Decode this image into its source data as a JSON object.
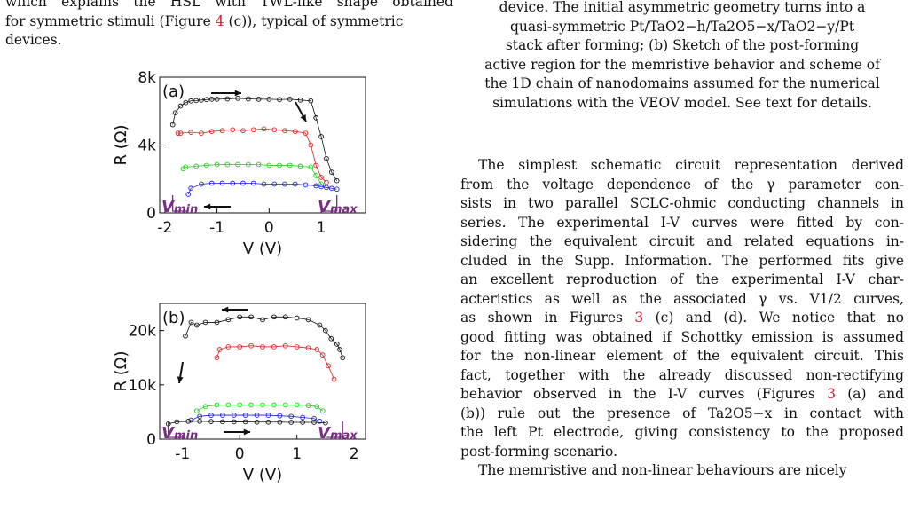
{
  "left_column": {
    "top_text": [
      "which explains the HSL with TWL-like shape obtained",
      "for symmetric stimuli (Figure ",
      "4",
      " (c)), typical of symmetric",
      "devices."
    ]
  },
  "right_column": {
    "caption_lines": [
      "device. The initial asymmetric geometry turns into a",
      "quasi-symmetric Pt/TaO2−h/Ta2O5−x/TaO2−y/Pt",
      "stack after forming; (b) Sketch of the post-forming",
      "active region for the memristive behavior and scheme of",
      "the 1D chain of nanodomains assumed for the numerical",
      "simulations with the VEOV model. See text for details."
    ],
    "body_lines": [
      "The simplest schematic circuit representation derived",
      "from the voltage dependence of the γ parameter con-",
      "sists in two parallel SCLC-ohmic conducting channels in",
      "series. The experimental I-V curves were fitted by con-",
      "sidering the equivalent circuit and related equations in-",
      "cluded in the Supp. Information. The performed fits give",
      "an excellent reproduction of the experimental I-V char-",
      "acteristics as well as the associated γ vs. V1/2 curves,",
      "as shown in Figures ",
      "3",
      " (c) and (d). We notice that no",
      "good fitting was obtained if Schottky emission is assumed",
      "for the non-linear element of the equivalent circuit. This",
      "fact, together with the already discussed non-rectifying",
      "behavior observed in the I-V curves (Figures ",
      "3",
      " (a) and",
      "(b)) rule out the presence of Ta2O5−x in contact with",
      "the left Pt electrode, giving consistency to the proposed",
      "post-forming scenario.",
      "The memristive and non-linear behaviours are nicely"
    ]
  },
  "colors": {
    "black": "#111111",
    "red": "#e02020",
    "green": "#22c81e",
    "blue": "#1e1ee6",
    "purple": "#7a2c86",
    "ref": "#e0142c"
  },
  "chart_data": [
    {
      "type": "scatter",
      "panel_label": "(a)",
      "xlabel": "V (V)",
      "ylabel": "R (Ω)",
      "xlim": [
        -2.1,
        1.85
      ],
      "ylim": [
        0,
        8000
      ],
      "xticks": [
        "-2",
        "-1",
        "0",
        "1"
      ],
      "yticks": [
        "0",
        "4k",
        "8k"
      ],
      "annotations": [
        "V_min",
        "V_max"
      ],
      "series": [
        {
          "color": "black",
          "x": [
            -1.85,
            -1.8,
            -1.7,
            -1.6,
            -1.5,
            -1.4,
            -1.3,
            -1.2,
            -1.1,
            -1.0,
            -0.8,
            -0.6,
            -0.4,
            -0.2,
            0,
            0.2,
            0.4,
            0.6,
            0.8,
            0.9,
            1.0,
            1.1,
            1.2,
            1.3
          ],
          "y": [
            5200,
            5900,
            6300,
            6500,
            6600,
            6620,
            6650,
            6680,
            6700,
            6700,
            6720,
            6750,
            6720,
            6700,
            6700,
            6680,
            6700,
            6650,
            6600,
            5600,
            4500,
            3200,
            2400,
            1900
          ]
        },
        {
          "color": "red",
          "x": [
            -1.75,
            -1.7,
            -1.5,
            -1.3,
            -1.1,
            -0.9,
            -0.7,
            -0.5,
            -0.3,
            -0.1,
            0.1,
            0.3,
            0.5,
            0.7,
            0.8,
            0.9,
            1.0,
            1.1
          ],
          "y": [
            4700,
            4700,
            4750,
            4700,
            4800,
            4850,
            4900,
            4850,
            4900,
            4950,
            4900,
            4850,
            4800,
            4700,
            4000,
            2800,
            2100,
            1800
          ]
        },
        {
          "color": "green",
          "x": [
            -1.65,
            -1.6,
            -1.4,
            -1.2,
            -1.0,
            -0.8,
            -0.6,
            -0.4,
            -0.2,
            0,
            0.2,
            0.4,
            0.6,
            0.8,
            0.9,
            1.0
          ],
          "y": [
            2600,
            2700,
            2750,
            2800,
            2850,
            2850,
            2850,
            2850,
            2850,
            2800,
            2800,
            2800,
            2750,
            2700,
            2200,
            1700
          ]
        },
        {
          "color": "blue",
          "x": [
            -1.55,
            -1.5,
            -1.3,
            -1.1,
            -0.9,
            -0.7,
            -0.5,
            -0.3,
            -0.1,
            0.1,
            0.3,
            0.5,
            0.7,
            0.9,
            1.0,
            1.1,
            1.2,
            1.3
          ],
          "y": [
            1100,
            1450,
            1700,
            1750,
            1750,
            1750,
            1750,
            1750,
            1700,
            1700,
            1700,
            1700,
            1650,
            1600,
            1550,
            1500,
            1450,
            1400
          ]
        }
      ]
    },
    {
      "type": "scatter",
      "panel_label": "(b)",
      "xlabel": "V (V)",
      "ylabel": "R (Ω)",
      "xlim": [
        -1.4,
        2.2
      ],
      "ylim": [
        0,
        25000
      ],
      "xticks": [
        "-1",
        "0",
        "1",
        "2"
      ],
      "yticks": [
        "0",
        "10k",
        "20k"
      ],
      "annotations": [
        "V_min",
        "V_max"
      ],
      "series": [
        {
          "color": "black",
          "x": [
            -0.95,
            -0.85,
            -0.75,
            -0.6,
            -0.4,
            -0.2,
            0,
            0.2,
            0.4,
            0.6,
            0.8,
            1.0,
            1.2,
            1.4,
            1.5,
            1.6,
            1.7,
            1.75,
            1.8
          ],
          "y": [
            19000,
            21500,
            21000,
            21500,
            21500,
            22000,
            22500,
            22500,
            22000,
            22500,
            22500,
            22300,
            22000,
            21000,
            20000,
            18500,
            17500,
            16500,
            15000
          ]
        },
        {
          "color": "red",
          "x": [
            -0.4,
            -0.35,
            -0.2,
            0,
            0.2,
            0.4,
            0.6,
            0.8,
            1.0,
            1.2,
            1.35,
            1.45,
            1.55,
            1.65
          ],
          "y": [
            15000,
            16500,
            17000,
            17000,
            17200,
            17000,
            17000,
            17200,
            17000,
            16800,
            16500,
            15500,
            13500,
            11000
          ]
        },
        {
          "color": "green",
          "x": [
            -0.75,
            -0.6,
            -0.4,
            -0.2,
            0,
            0.2,
            0.4,
            0.6,
            0.8,
            1.0,
            1.2,
            1.35,
            1.45
          ],
          "y": [
            5200,
            6000,
            6300,
            6300,
            6300,
            6300,
            6300,
            6300,
            6300,
            6300,
            6200,
            6000,
            5200
          ]
        },
        {
          "color": "blue",
          "x": [
            -0.85,
            -0.7,
            -0.5,
            -0.3,
            -0.1,
            0.1,
            0.3,
            0.5,
            0.7,
            0.9,
            1.1,
            1.3,
            1.4
          ],
          "y": [
            3500,
            4200,
            4400,
            4400,
            4400,
            4400,
            4400,
            4400,
            4300,
            4200,
            4000,
            3800,
            3300
          ]
        },
        {
          "color": "black",
          "x": [
            -1.25,
            -1.1,
            -0.9,
            -0.7,
            -0.5,
            -0.3,
            -0.1,
            0.1,
            0.3,
            0.5,
            0.7,
            0.9,
            1.1,
            1.3,
            1.5
          ],
          "y": [
            2800,
            3200,
            3300,
            3300,
            3250,
            3200,
            3200,
            3200,
            3150,
            3150,
            3150,
            3100,
            3100,
            3100,
            3000
          ]
        }
      ]
    }
  ]
}
